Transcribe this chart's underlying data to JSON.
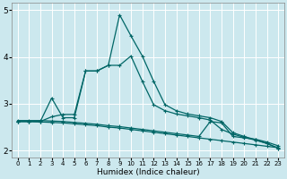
{
  "xlabel": "Humidex (Indice chaleur)",
  "bg_color": "#cce8ee",
  "line_color": "#006666",
  "grid_color": "#ffffff",
  "xlim": [
    -0.5,
    23.5
  ],
  "ylim": [
    1.85,
    5.15
  ],
  "yticks": [
    2,
    3,
    4,
    5
  ],
  "xticks": [
    0,
    1,
    2,
    3,
    4,
    5,
    6,
    7,
    8,
    9,
    10,
    11,
    12,
    13,
    14,
    15,
    16,
    17,
    18,
    19,
    20,
    21,
    22,
    23
  ],
  "line1_x": [
    0,
    1,
    2,
    3,
    4,
    5,
    6,
    7,
    8,
    9,
    10,
    11,
    12,
    13,
    14,
    15,
    16,
    17,
    18,
    19,
    20,
    21,
    22,
    23
  ],
  "line1_y": [
    2.62,
    2.62,
    2.61,
    2.6,
    2.59,
    2.57,
    2.55,
    2.53,
    2.5,
    2.48,
    2.45,
    2.42,
    2.39,
    2.36,
    2.33,
    2.3,
    2.27,
    2.24,
    2.21,
    2.18,
    2.15,
    2.12,
    2.09,
    2.06
  ],
  "line2_x": [
    0,
    1,
    2,
    3,
    4,
    5,
    6,
    7,
    8,
    9,
    10,
    11,
    12,
    13,
    14,
    15,
    16,
    17,
    18,
    19,
    20,
    21,
    22,
    23
  ],
  "line2_y": [
    2.64,
    2.64,
    2.64,
    2.63,
    2.62,
    2.6,
    2.58,
    2.56,
    2.53,
    2.51,
    2.48,
    2.45,
    2.42,
    2.39,
    2.36,
    2.33,
    2.3,
    2.62,
    2.59,
    2.3,
    2.27,
    2.24,
    2.18,
    2.1
  ],
  "line3_x": [
    0,
    1,
    2,
    3,
    4,
    5,
    6,
    7,
    8,
    9,
    10,
    11,
    12,
    13,
    14,
    15,
    16,
    17,
    18,
    19,
    20,
    21,
    22,
    23
  ],
  "line3_y": [
    2.62,
    2.62,
    2.62,
    3.12,
    2.7,
    2.7,
    3.7,
    3.7,
    3.82,
    4.9,
    4.45,
    4.02,
    3.48,
    2.98,
    2.85,
    2.78,
    2.74,
    2.7,
    2.62,
    2.38,
    2.3,
    2.23,
    2.15,
    2.05
  ],
  "line4_x": [
    0,
    1,
    2,
    3,
    4,
    5,
    6,
    7,
    8,
    9,
    10,
    11,
    12,
    13,
    14,
    15,
    16,
    17,
    18,
    19,
    20,
    21,
    22,
    23
  ],
  "line4_y": [
    2.62,
    2.62,
    2.62,
    2.72,
    2.77,
    2.77,
    3.7,
    3.7,
    3.82,
    3.82,
    4.02,
    3.48,
    2.98,
    2.85,
    2.78,
    2.74,
    2.7,
    2.65,
    2.45,
    2.35,
    2.28,
    2.22,
    2.15,
    2.05
  ]
}
